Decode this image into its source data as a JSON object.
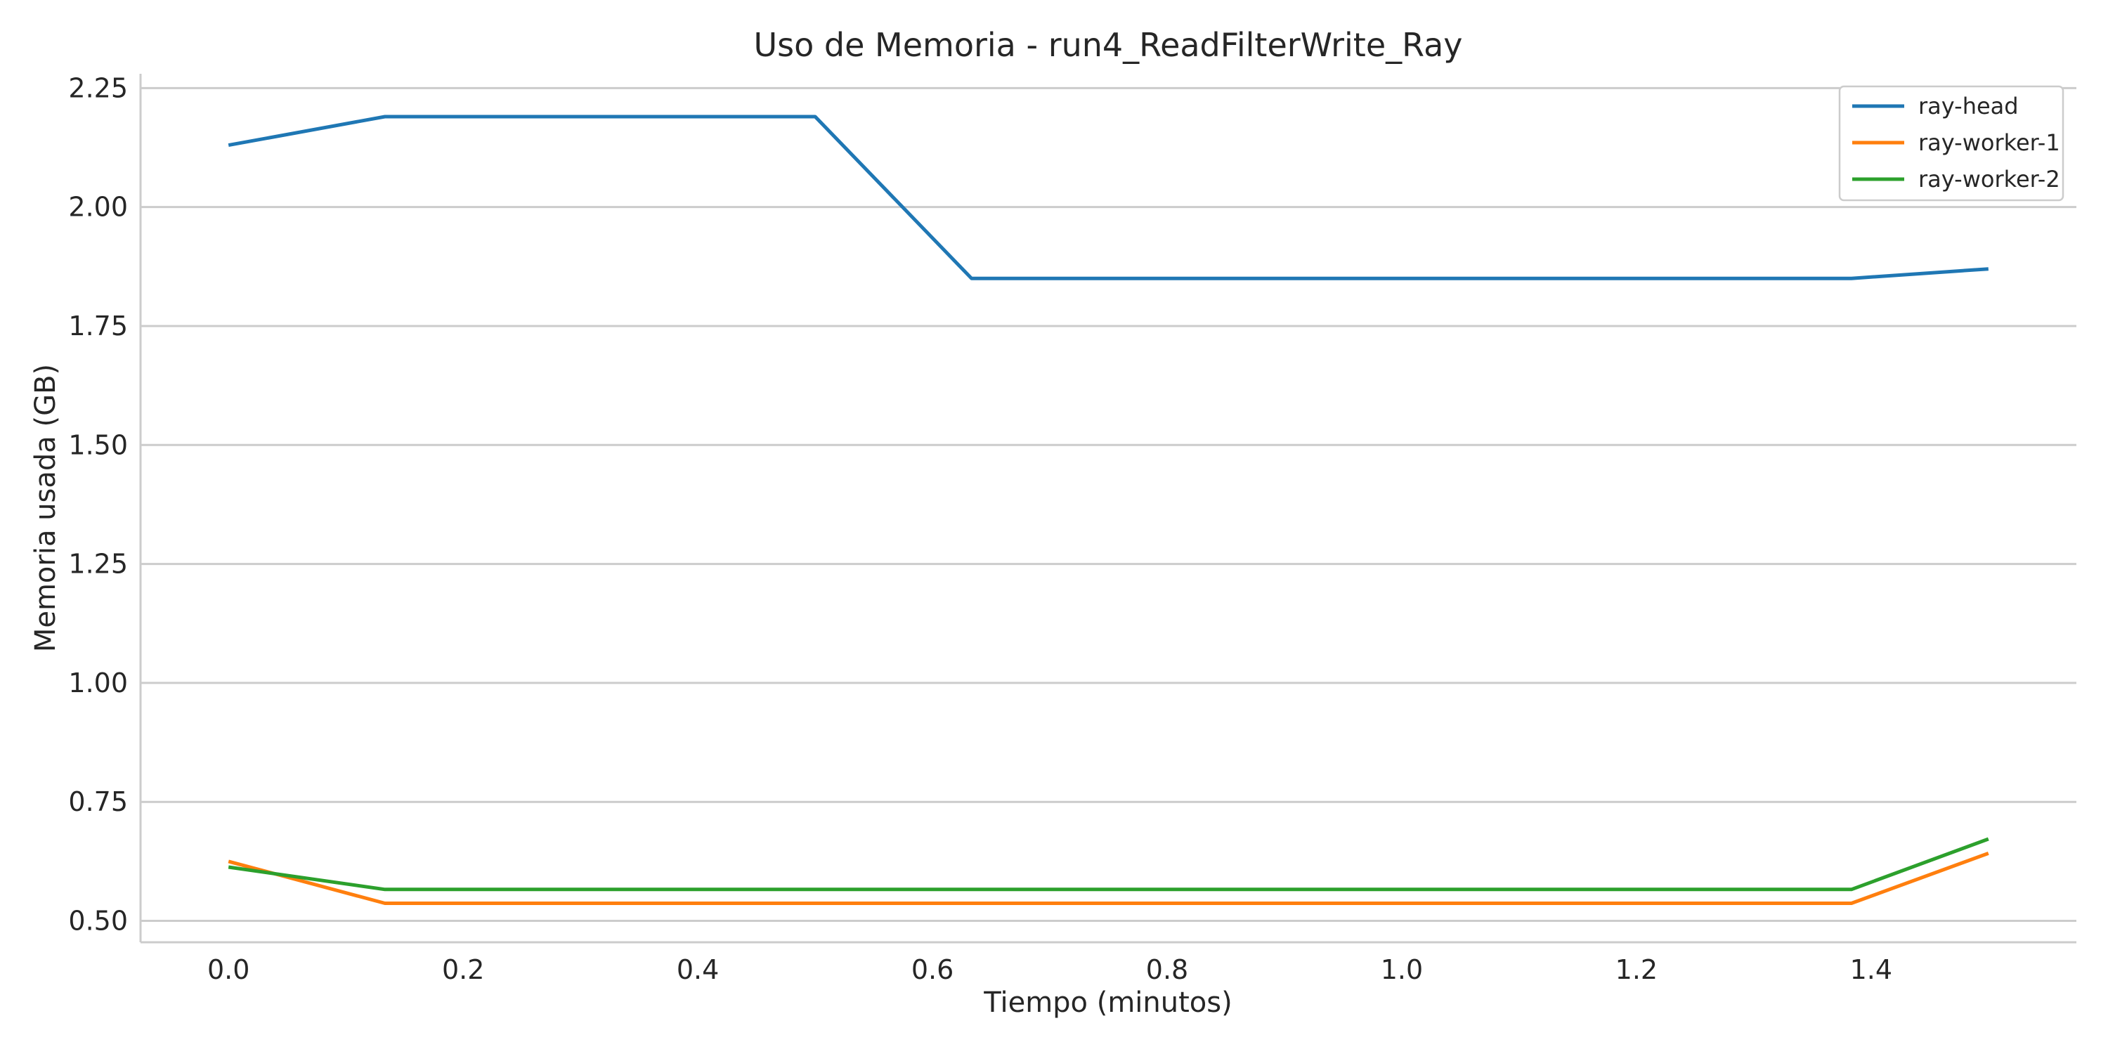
{
  "chart_data": {
    "type": "line",
    "title": "Uso de Memoria - run4_ReadFilterWrite_Ray",
    "xlabel": "Tiempo (minutos)",
    "ylabel": "Memoria usada (GB)",
    "xlim": [
      -0.075,
      1.575
    ],
    "ylim": [
      0.455,
      2.28
    ],
    "x_ticks": [
      0.0,
      0.2,
      0.4,
      0.6,
      0.8,
      1.0,
      1.2,
      1.4
    ],
    "x_tick_labels": [
      "0.0",
      "0.2",
      "0.4",
      "0.6",
      "0.8",
      "1.0",
      "1.2",
      "1.4"
    ],
    "y_ticks": [
      0.5,
      0.75,
      1.0,
      1.25,
      1.5,
      1.75,
      2.0,
      2.25
    ],
    "y_tick_labels": [
      "0.50",
      "0.75",
      "1.00",
      "1.25",
      "1.50",
      "1.75",
      "2.00",
      "2.25"
    ],
    "grid": "horizontal",
    "legend_position": "top-right",
    "x": [
      0.0,
      0.1333,
      0.2667,
      0.4,
      0.5,
      0.6333,
      0.7667,
      0.9,
      1.0333,
      1.1667,
      1.25,
      1.3833,
      1.5
    ],
    "series": [
      {
        "name": "ray-head",
        "color": "#1f77b4",
        "values": [
          2.13,
          2.19,
          2.19,
          2.19,
          2.19,
          1.85,
          1.85,
          1.85,
          1.85,
          1.85,
          1.85,
          1.85,
          1.87
        ]
      },
      {
        "name": "ray-worker-1",
        "color": "#ff7f0e",
        "values": [
          0.625,
          0.537,
          0.537,
          0.537,
          0.537,
          0.537,
          0.537,
          0.537,
          0.537,
          0.537,
          0.537,
          0.537,
          0.642
        ]
      },
      {
        "name": "ray-worker-2",
        "color": "#2ca02c",
        "values": [
          0.613,
          0.566,
          0.566,
          0.566,
          0.566,
          0.566,
          0.566,
          0.566,
          0.566,
          0.566,
          0.566,
          0.566,
          0.672
        ]
      }
    ]
  }
}
